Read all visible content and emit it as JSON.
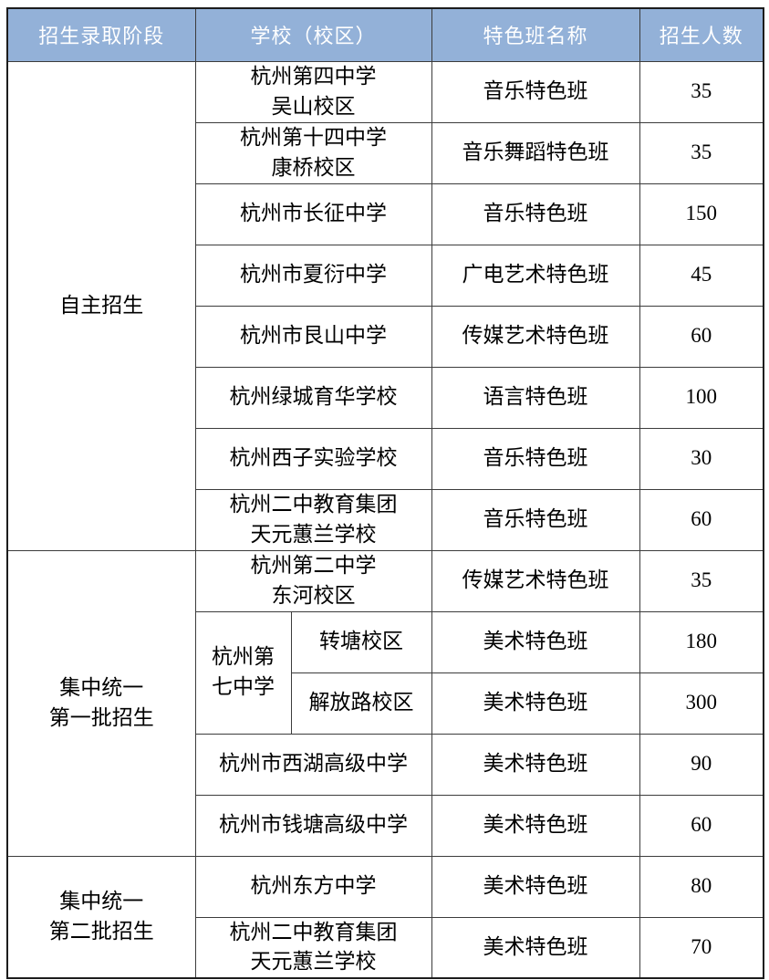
{
  "table": {
    "columns": [
      "招生录取阶段",
      "学校（校区）",
      "特色班名称",
      "招生人数"
    ],
    "sections": [
      {
        "stage_lines": [
          "自主招生"
        ],
        "rows": [
          {
            "school_lines": [
              "杭州第四中学",
              "吴山校区"
            ],
            "class_name": "音乐特色班",
            "count": "35"
          },
          {
            "school_lines": [
              "杭州第十四中学",
              "康桥校区"
            ],
            "class_name": "音乐舞蹈特色班",
            "count": "35"
          },
          {
            "school_lines": [
              "杭州市长征中学"
            ],
            "class_name": "音乐特色班",
            "count": "150"
          },
          {
            "school_lines": [
              "杭州市夏衍中学"
            ],
            "class_name": "广电艺术特色班",
            "count": "45"
          },
          {
            "school_lines": [
              "杭州市艮山中学"
            ],
            "class_name": "传媒艺术特色班",
            "count": "60"
          },
          {
            "school_lines": [
              "杭州绿城育华学校"
            ],
            "class_name": "语言特色班",
            "count": "100"
          },
          {
            "school_lines": [
              "杭州西子实验学校"
            ],
            "class_name": "音乐特色班",
            "count": "30"
          },
          {
            "school_lines": [
              "杭州二中教育集团",
              "天元蕙兰学校"
            ],
            "class_name": "音乐特色班",
            "count": "60"
          }
        ]
      },
      {
        "stage_lines": [
          "集中统一",
          "第一批招生"
        ],
        "rows": [
          {
            "school_lines": [
              "杭州第二中学",
              "东河校区"
            ],
            "class_name": "传媒艺术特色班",
            "count": "35"
          },
          {
            "school_name_lines": [
              "杭州第",
              "七中学"
            ],
            "school_name_rowspan": 2,
            "campus": "转塘校区",
            "class_name": "美术特色班",
            "count": "180"
          },
          {
            "campus": "解放路校区",
            "class_name": "美术特色班",
            "count": "300"
          },
          {
            "school_lines": [
              "杭州市西湖高级中学"
            ],
            "class_name": "美术特色班",
            "count": "90"
          },
          {
            "school_lines": [
              "杭州市钱塘高级中学"
            ],
            "class_name": "美术特色班",
            "count": "60"
          }
        ]
      },
      {
        "stage_lines": [
          "集中统一",
          "第二批招生"
        ],
        "rows": [
          {
            "school_lines": [
              "杭州东方中学"
            ],
            "class_name": "美术特色班",
            "count": "80"
          },
          {
            "school_lines": [
              "杭州二中教育集团",
              "天元蕙兰学校"
            ],
            "class_name": "美术特色班",
            "count": "70"
          }
        ]
      }
    ],
    "colors": {
      "header_bg": "#93b1d8",
      "header_text": "#ffffff",
      "border_inner": "#3c3c3c",
      "border_outer": "#1c1c1c",
      "body_text": "#000000"
    }
  }
}
